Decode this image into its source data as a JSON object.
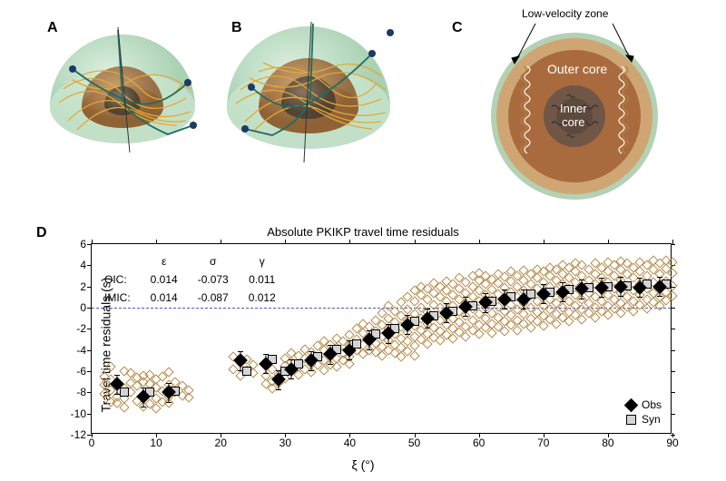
{
  "labels": {
    "A": "A",
    "B": "B",
    "C": "C",
    "D": "D",
    "lvz": "Low-velocity zone",
    "outer_core": "Outer core",
    "inner_core": "Inner\ncore",
    "chart_title": "Absolute PKIKP travel time residuals",
    "ylabel": "Travel time residuals (s)",
    "xlabel": "ξ (°)",
    "obs": "Obs",
    "syn": "Syn"
  },
  "panelC": {
    "outer_fill": "#a96b3e",
    "inner_fill": "#6f5647",
    "ring_fill": "#cfa673",
    "mantle_fill": "#b3d1b3"
  },
  "panelAB": {
    "outer_sphere": "#b9dcc0",
    "mid_sphere": "#b07a4a",
    "inner_sphere": "#6a5a4a",
    "ray_color": "#e0a938",
    "highlight_ray": "#1d6d63",
    "point_color": "#1c3a66"
  },
  "params": {
    "header": [
      "",
      "ε",
      "σ",
      "γ"
    ],
    "rows": [
      {
        "label": "OIC:",
        "eps": "0.014",
        "sig": "-0.073",
        "gam": "0.011"
      },
      {
        "label": "IMIC:",
        "eps": "0.014",
        "sig": "-0.087",
        "gam": "0.012"
      }
    ]
  },
  "chart": {
    "xlim": [
      0,
      90
    ],
    "ylim": [
      -12,
      6
    ],
    "xtick_step": 10,
    "ytick_step": 2,
    "bg": "#ffffff",
    "open_marker_color": "#b58a4a",
    "obs_color": "#000000",
    "syn_fill": "#d4d4d4",
    "zeroline_color": "#4a5fb0",
    "scatter": [
      [
        2,
        -6.5
      ],
      [
        2,
        -7.3
      ],
      [
        2,
        -8.1
      ],
      [
        3,
        -6.8
      ],
      [
        3,
        -7.8
      ],
      [
        3,
        -8.9
      ],
      [
        3,
        -5.6
      ],
      [
        4,
        -7.1
      ],
      [
        4,
        -8.4
      ],
      [
        4,
        -9.0
      ],
      [
        5,
        -6.0
      ],
      [
        5,
        -7.6
      ],
      [
        5,
        -8.6
      ],
      [
        5,
        -9.4
      ],
      [
        6,
        -7.1
      ],
      [
        6,
        -8.0
      ],
      [
        6,
        -6.2
      ],
      [
        7,
        -7.4
      ],
      [
        7,
        -8.8
      ],
      [
        7,
        -6.6
      ],
      [
        8,
        -8.5
      ],
      [
        8,
        -9.3
      ],
      [
        8,
        -7.0
      ],
      [
        8,
        -6.4
      ],
      [
        9,
        -8.0
      ],
      [
        9,
        -7.2
      ],
      [
        9,
        -9.1
      ],
      [
        9,
        -6.3
      ],
      [
        10,
        -8.6
      ],
      [
        10,
        -7.5
      ],
      [
        10,
        -9.5
      ],
      [
        10,
        -6.8
      ],
      [
        11,
        -7.9
      ],
      [
        11,
        -8.9
      ],
      [
        11,
        -6.5
      ],
      [
        12,
        -8.4
      ],
      [
        12,
        -7.3
      ],
      [
        12,
        -9.0
      ],
      [
        12,
        -6.1
      ],
      [
        13,
        -8.0
      ],
      [
        13,
        -7.0
      ],
      [
        14,
        -8.3
      ],
      [
        14,
        -7.4
      ],
      [
        15,
        -7.8
      ],
      [
        15,
        -8.5
      ],
      [
        22,
        -5.8
      ],
      [
        22,
        -4.6
      ],
      [
        23,
        -5.2
      ],
      [
        23,
        -6.4
      ],
      [
        24,
        -4.9
      ],
      [
        24,
        -5.9
      ],
      [
        25,
        -5.4
      ],
      [
        25,
        -6.2
      ],
      [
        27,
        -7.2
      ],
      [
        27,
        -6.4
      ],
      [
        28,
        -6.9
      ],
      [
        28,
        -5.8
      ],
      [
        28,
        -7.6
      ],
      [
        29,
        -6.3
      ],
      [
        29,
        -7.1
      ],
      [
        30,
        -5.5
      ],
      [
        30,
        -6.7
      ],
      [
        30,
        -4.8
      ],
      [
        31,
        -5.1
      ],
      [
        31,
        -6.0
      ],
      [
        31,
        -4.3
      ],
      [
        32,
        -5.6
      ],
      [
        32,
        -4.5
      ],
      [
        32,
        -6.3
      ],
      [
        33,
        -4.8
      ],
      [
        33,
        -5.8
      ],
      [
        33,
        -3.9
      ],
      [
        34,
        -4.2
      ],
      [
        34,
        -5.3
      ],
      [
        34,
        -6.1
      ],
      [
        35,
        -4.6
      ],
      [
        35,
        -3.6
      ],
      [
        35,
        -5.4
      ],
      [
        36,
        -4.0
      ],
      [
        36,
        -5.0
      ],
      [
        36,
        -3.2
      ],
      [
        36,
        -5.9
      ],
      [
        37,
        -4.5
      ],
      [
        37,
        -3.5
      ],
      [
        37,
        -5.4
      ],
      [
        38,
        -3.8
      ],
      [
        38,
        -4.8
      ],
      [
        38,
        -2.9
      ],
      [
        38,
        -5.6
      ],
      [
        39,
        -3.2
      ],
      [
        39,
        -4.3
      ],
      [
        39,
        -5.0
      ],
      [
        40,
        -3.6
      ],
      [
        40,
        -2.6
      ],
      [
        40,
        -4.6
      ],
      [
        40,
        -5.3
      ],
      [
        41,
        -3.0
      ],
      [
        41,
        -4.0
      ],
      [
        41,
        -2.0
      ],
      [
        42,
        -2.4
      ],
      [
        42,
        -3.5
      ],
      [
        42,
        -4.4
      ],
      [
        42,
        -1.5
      ],
      [
        43,
        -2.8
      ],
      [
        43,
        -1.8
      ],
      [
        43,
        -4.0
      ],
      [
        44,
        -2.2
      ],
      [
        44,
        -3.3
      ],
      [
        44,
        -1.2
      ],
      [
        44,
        -4.2
      ],
      [
        45,
        -2.7
      ],
      [
        45,
        -1.6
      ],
      [
        45,
        -3.7
      ],
      [
        45,
        -0.5
      ],
      [
        45,
        -4.5
      ],
      [
        46,
        -2.0
      ],
      [
        46,
        -3.1
      ],
      [
        46,
        -1.0
      ],
      [
        46,
        -4.0
      ],
      [
        46,
        0.2
      ],
      [
        47,
        -2.5
      ],
      [
        47,
        -1.4
      ],
      [
        47,
        -3.5
      ],
      [
        47,
        -0.3
      ],
      [
        47,
        -4.3
      ],
      [
        48,
        -1.8
      ],
      [
        48,
        -2.9
      ],
      [
        48,
        -0.8
      ],
      [
        48,
        -3.8
      ],
      [
        48,
        0.5
      ],
      [
        48,
        -4.6
      ],
      [
        49,
        -1.2
      ],
      [
        49,
        -2.3
      ],
      [
        49,
        -0.2
      ],
      [
        49,
        -3.2
      ],
      [
        49,
        1.0
      ],
      [
        49,
        -4.1
      ],
      [
        50,
        -1.7
      ],
      [
        50,
        -2.7
      ],
      [
        50,
        -0.6
      ],
      [
        50,
        -3.6
      ],
      [
        50,
        0.6
      ],
      [
        50,
        1.6
      ],
      [
        50,
        -4.5
      ],
      [
        51,
        -1.0
      ],
      [
        51,
        -2.1
      ],
      [
        51,
        0.0
      ],
      [
        51,
        -3.0
      ],
      [
        51,
        1.2
      ],
      [
        51,
        2.0
      ],
      [
        52,
        -1.5
      ],
      [
        52,
        -0.4
      ],
      [
        52,
        -2.5
      ],
      [
        52,
        0.8
      ],
      [
        52,
        -3.4
      ],
      [
        52,
        1.8
      ],
      [
        53,
        -0.8
      ],
      [
        53,
        -1.9
      ],
      [
        53,
        0.3
      ],
      [
        53,
        -2.8
      ],
      [
        53,
        1.4
      ],
      [
        53,
        2.3
      ],
      [
        54,
        -1.2
      ],
      [
        54,
        0.0
      ],
      [
        54,
        -2.2
      ],
      [
        54,
        1.0
      ],
      [
        54,
        -3.1
      ],
      [
        54,
        2.0
      ],
      [
        55,
        -0.6
      ],
      [
        55,
        -1.6
      ],
      [
        55,
        0.6
      ],
      [
        55,
        -2.6
      ],
      [
        55,
        1.6
      ],
      [
        55,
        2.5
      ],
      [
        56,
        -1.0
      ],
      [
        56,
        0.2
      ],
      [
        56,
        -2.0
      ],
      [
        56,
        1.2
      ],
      [
        56,
        -2.9
      ],
      [
        56,
        2.2
      ],
      [
        57,
        -0.3
      ],
      [
        57,
        -1.4
      ],
      [
        57,
        0.8
      ],
      [
        57,
        -2.3
      ],
      [
        57,
        1.8
      ],
      [
        57,
        2.8
      ],
      [
        58,
        -0.8
      ],
      [
        58,
        0.4
      ],
      [
        58,
        -1.8
      ],
      [
        58,
        1.4
      ],
      [
        58,
        -2.7
      ],
      [
        58,
        2.4
      ],
      [
        59,
        -0.1
      ],
      [
        59,
        -1.2
      ],
      [
        59,
        1.0
      ],
      [
        59,
        -2.1
      ],
      [
        59,
        2.0
      ],
      [
        59,
        3.0
      ],
      [
        60,
        -0.6
      ],
      [
        60,
        0.6
      ],
      [
        60,
        -1.6
      ],
      [
        60,
        1.6
      ],
      [
        60,
        -2.5
      ],
      [
        60,
        2.6
      ],
      [
        60,
        3.3
      ],
      [
        61,
        0.0
      ],
      [
        61,
        -1.0
      ],
      [
        61,
        1.2
      ],
      [
        61,
        -1.9
      ],
      [
        61,
        2.2
      ],
      [
        61,
        3.0
      ],
      [
        62,
        -0.5
      ],
      [
        62,
        0.7
      ],
      [
        62,
        -1.5
      ],
      [
        62,
        1.7
      ],
      [
        62,
        -2.4
      ],
      [
        62,
        2.7
      ],
      [
        63,
        0.1
      ],
      [
        63,
        -0.9
      ],
      [
        63,
        1.3
      ],
      [
        63,
        -1.8
      ],
      [
        63,
        2.3
      ],
      [
        63,
        3.2
      ],
      [
        64,
        -0.3
      ],
      [
        64,
        0.9
      ],
      [
        64,
        -1.3
      ],
      [
        64,
        1.9
      ],
      [
        64,
        -2.2
      ],
      [
        64,
        2.9
      ],
      [
        65,
        0.3
      ],
      [
        65,
        -0.7
      ],
      [
        65,
        1.5
      ],
      [
        65,
        -1.6
      ],
      [
        65,
        2.5
      ],
      [
        65,
        3.4
      ],
      [
        66,
        -0.2
      ],
      [
        66,
        1.0
      ],
      [
        66,
        -1.2
      ],
      [
        66,
        2.0
      ],
      [
        66,
        -2.1
      ],
      [
        66,
        3.0
      ],
      [
        67,
        0.4
      ],
      [
        67,
        -0.6
      ],
      [
        67,
        1.6
      ],
      [
        67,
        -1.5
      ],
      [
        67,
        2.6
      ],
      [
        67,
        3.5
      ],
      [
        68,
        0.0
      ],
      [
        68,
        1.2
      ],
      [
        68,
        -1.0
      ],
      [
        68,
        2.2
      ],
      [
        68,
        -1.9
      ],
      [
        68,
        3.2
      ],
      [
        69,
        0.6
      ],
      [
        69,
        -0.4
      ],
      [
        69,
        1.8
      ],
      [
        69,
        -1.3
      ],
      [
        69,
        2.8
      ],
      [
        69,
        3.6
      ],
      [
        70,
        0.2
      ],
      [
        70,
        1.4
      ],
      [
        70,
        -0.8
      ],
      [
        70,
        2.4
      ],
      [
        70,
        -1.7
      ],
      [
        70,
        3.4
      ],
      [
        71,
        0.8
      ],
      [
        71,
        -0.2
      ],
      [
        71,
        2.0
      ],
      [
        71,
        -1.1
      ],
      [
        71,
        3.0
      ],
      [
        71,
        3.8
      ],
      [
        72,
        0.4
      ],
      [
        72,
        1.6
      ],
      [
        72,
        -0.6
      ],
      [
        72,
        2.6
      ],
      [
        72,
        -1.5
      ],
      [
        72,
        3.6
      ],
      [
        73,
        1.0
      ],
      [
        73,
        0.0
      ],
      [
        73,
        2.2
      ],
      [
        73,
        -0.9
      ],
      [
        73,
        3.2
      ],
      [
        73,
        4.0
      ],
      [
        74,
        0.6
      ],
      [
        74,
        1.8
      ],
      [
        74,
        -0.4
      ],
      [
        74,
        2.8
      ],
      [
        74,
        -1.3
      ],
      [
        74,
        3.8
      ],
      [
        75,
        1.2
      ],
      [
        75,
        0.2
      ],
      [
        75,
        2.4
      ],
      [
        75,
        -0.7
      ],
      [
        75,
        3.4
      ],
      [
        75,
        4.2
      ],
      [
        76,
        0.8
      ],
      [
        76,
        2.0
      ],
      [
        76,
        -0.2
      ],
      [
        76,
        3.0
      ],
      [
        76,
        -1.1
      ],
      [
        76,
        4.0
      ],
      [
        77,
        1.4
      ],
      [
        77,
        0.4
      ],
      [
        77,
        2.6
      ],
      [
        77,
        -0.5
      ],
      [
        77,
        3.6
      ],
      [
        78,
        1.0
      ],
      [
        78,
        2.2
      ],
      [
        78,
        0.0
      ],
      [
        78,
        3.2
      ],
      [
        78,
        -0.9
      ],
      [
        78,
        4.2
      ],
      [
        79,
        1.6
      ],
      [
        79,
        0.6
      ],
      [
        79,
        2.8
      ],
      [
        79,
        -0.3
      ],
      [
        79,
        3.8
      ],
      [
        80,
        1.2
      ],
      [
        80,
        2.4
      ],
      [
        80,
        0.2
      ],
      [
        80,
        3.4
      ],
      [
        80,
        -0.7
      ],
      [
        80,
        4.3
      ],
      [
        81,
        1.8
      ],
      [
        81,
        0.8
      ],
      [
        81,
        3.0
      ],
      [
        81,
        -0.1
      ],
      [
        81,
        4.0
      ],
      [
        82,
        1.4
      ],
      [
        82,
        2.6
      ],
      [
        82,
        0.4
      ],
      [
        82,
        3.6
      ],
      [
        82,
        -0.5
      ],
      [
        82,
        4.4
      ],
      [
        83,
        2.0
      ],
      [
        83,
        1.0
      ],
      [
        83,
        3.2
      ],
      [
        83,
        0.1
      ],
      [
        83,
        4.2
      ],
      [
        84,
        1.6
      ],
      [
        84,
        2.8
      ],
      [
        84,
        0.6
      ],
      [
        84,
        3.8
      ],
      [
        84,
        -0.3
      ],
      [
        85,
        2.2
      ],
      [
        85,
        1.2
      ],
      [
        85,
        3.4
      ],
      [
        85,
        0.3
      ],
      [
        85,
        4.3
      ],
      [
        86,
        1.8
      ],
      [
        86,
        3.0
      ],
      [
        86,
        0.8
      ],
      [
        86,
        4.0
      ],
      [
        86,
        -0.1
      ],
      [
        87,
        2.4
      ],
      [
        87,
        1.4
      ],
      [
        87,
        3.6
      ],
      [
        87,
        0.5
      ],
      [
        87,
        4.5
      ],
      [
        88,
        2.0
      ],
      [
        88,
        3.2
      ],
      [
        88,
        1.0
      ],
      [
        88,
        4.2
      ],
      [
        88,
        0.2
      ],
      [
        89,
        2.5
      ],
      [
        89,
        1.5
      ],
      [
        89,
        3.7
      ],
      [
        89,
        0.7
      ],
      [
        89,
        4.5
      ],
      [
        90,
        2.1
      ],
      [
        90,
        3.3
      ],
      [
        90,
        1.1
      ],
      [
        90,
        4.3
      ]
    ],
    "obs_bins": [
      [
        4,
        -7.2
      ],
      [
        8,
        -8.4
      ],
      [
        12,
        -8.0
      ],
      [
        23,
        -5.0
      ],
      [
        27,
        -5.3
      ],
      [
        29,
        -6.8
      ],
      [
        31,
        -5.8
      ],
      [
        34,
        -5.0
      ],
      [
        37,
        -4.4
      ],
      [
        40,
        -4.0
      ],
      [
        43,
        -3.0
      ],
      [
        46,
        -2.4
      ],
      [
        49,
        -1.6
      ],
      [
        52,
        -1.0
      ],
      [
        55,
        -0.5
      ],
      [
        58,
        0.1
      ],
      [
        61,
        0.5
      ],
      [
        64,
        0.8
      ],
      [
        67,
        0.8
      ],
      [
        70,
        1.3
      ],
      [
        73,
        1.5
      ],
      [
        76,
        1.8
      ],
      [
        79,
        1.9
      ],
      [
        82,
        2.0
      ],
      [
        85,
        1.9
      ],
      [
        88,
        2.0
      ]
    ],
    "syn_bins": [
      [
        5,
        -8.0
      ],
      [
        9,
        -8.0
      ],
      [
        13,
        -7.9
      ],
      [
        24,
        -6.0
      ],
      [
        28,
        -4.9
      ],
      [
        30,
        -6.0
      ],
      [
        32,
        -5.3
      ],
      [
        35,
        -4.6
      ],
      [
        38,
        -3.9
      ],
      [
        41,
        -3.4
      ],
      [
        44,
        -2.5
      ],
      [
        47,
        -2.0
      ],
      [
        50,
        -1.3
      ],
      [
        53,
        -0.8
      ],
      [
        56,
        -0.3
      ],
      [
        59,
        0.2
      ],
      [
        62,
        0.6
      ],
      [
        65,
        1.0
      ],
      [
        68,
        1.3
      ],
      [
        71,
        1.5
      ],
      [
        74,
        1.7
      ],
      [
        77,
        1.9
      ],
      [
        80,
        2.0
      ],
      [
        83,
        2.1
      ],
      [
        86,
        2.2
      ],
      [
        89,
        2.2
      ]
    ],
    "error": 0.9
  }
}
